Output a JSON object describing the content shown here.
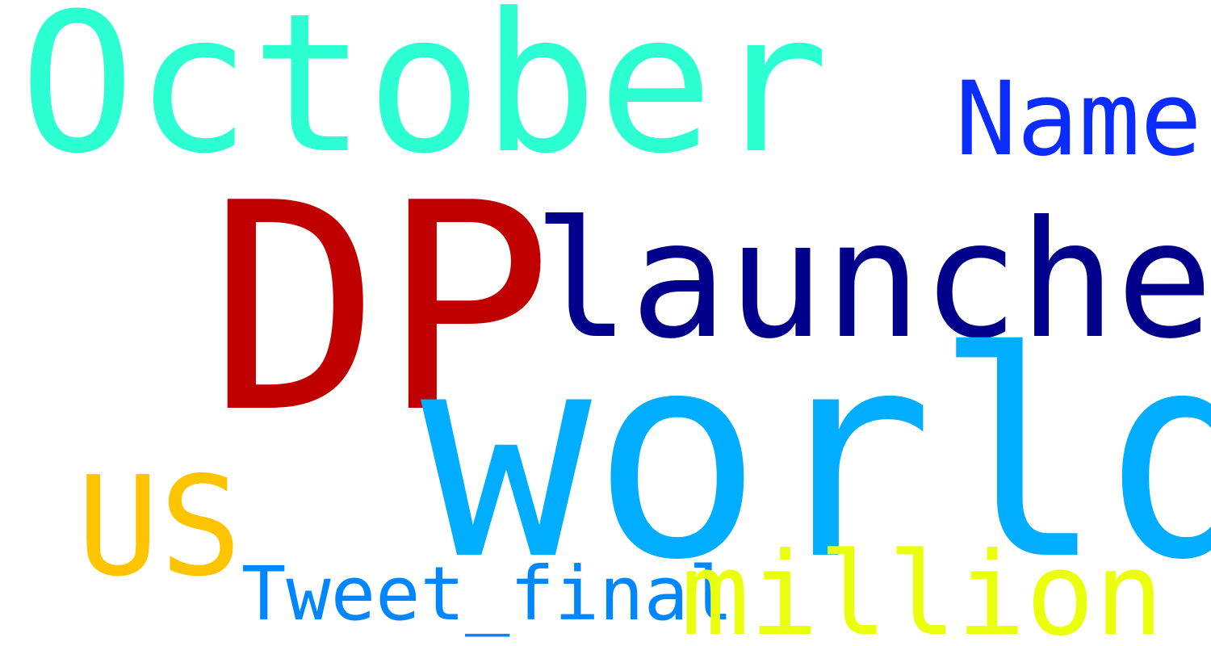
{
  "words": [
    {
      "id": "october",
      "text": "October",
      "color": "#2cffd2"
    },
    {
      "id": "name",
      "text": "Name",
      "color": "#0a2cff"
    },
    {
      "id": "dp",
      "text": "DP",
      "color": "#c00000"
    },
    {
      "id": "launched",
      "text": "launched",
      "color": "#00008b"
    },
    {
      "id": "world",
      "text": "world",
      "color": "#00adff"
    },
    {
      "id": "us",
      "text": "US",
      "color": "#ffc400"
    },
    {
      "id": "tweet",
      "text": "Tweet_final",
      "color": "#0087ff"
    },
    {
      "id": "million",
      "text": "million",
      "color": "#eaff0d"
    }
  ]
}
